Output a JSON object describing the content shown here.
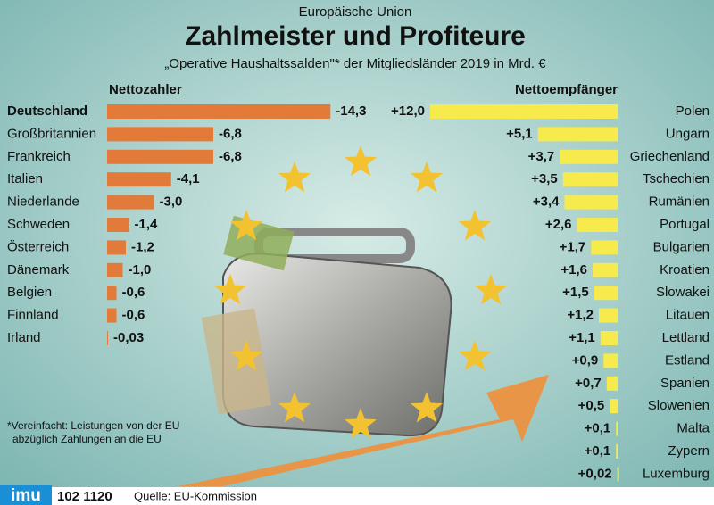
{
  "header": {
    "supertitle": "Europäische Union",
    "title": "Zahlmeister und Profiteure",
    "subtitle": "„Operative Haushaltssalden\"* der Mitgliedsländer 2019 in Mrd. €"
  },
  "chart_data": [
    {
      "type": "bar",
      "title": "Nettozahler",
      "color": "#e27a3a",
      "categories": [
        "Deutschland",
        "Großbritannien",
        "Frankreich",
        "Italien",
        "Niederlande",
        "Schweden",
        "Österreich",
        "Dänemark",
        "Belgien",
        "Finnland",
        "Irland"
      ],
      "values": [
        -14.3,
        -6.8,
        -6.8,
        -4.1,
        -3.0,
        -1.4,
        -1.2,
        -1.0,
        -0.6,
        -0.6,
        -0.03
      ],
      "value_labels": [
        "-14,3",
        "-6,8",
        "-6,8",
        "-4,1",
        "-3,0",
        "-1,4",
        "-1,2",
        "-1,0",
        "-0,6",
        "-0,6",
        "-0,03"
      ]
    },
    {
      "type": "bar",
      "title": "Nettoempfänger",
      "color": "#f6ea4c",
      "categories": [
        "Polen",
        "Ungarn",
        "Griechenland",
        "Tschechien",
        "Rumänien",
        "Portugal",
        "Bulgarien",
        "Kroatien",
        "Slowakei",
        "Litauen",
        "Lettland",
        "Estland",
        "Spanien",
        "Slowenien",
        "Malta",
        "Zypern",
        "Luxemburg"
      ],
      "values": [
        12.0,
        5.1,
        3.7,
        3.5,
        3.4,
        2.6,
        1.7,
        1.6,
        1.5,
        1.2,
        1.1,
        0.9,
        0.7,
        0.5,
        0.1,
        0.1,
        0.02
      ],
      "value_labels": [
        "+12,0",
        "+5,1",
        "+3,7",
        "+3,5",
        "+3,4",
        "+2,6",
        "+1,7",
        "+1,6",
        "+1,5",
        "+1,2",
        "+1,1",
        "+0,9",
        "+0,7",
        "+0,5",
        "+0,1",
        "+0,1",
        "+0,02"
      ]
    }
  ],
  "footnote": [
    "*Vereinfacht: Leistungen von der EU",
    "abzüglich Zahlungen an die EU"
  ],
  "footer": {
    "logo": "imu",
    "code": "102 1120",
    "source": "Quelle: EU-Kommission"
  }
}
